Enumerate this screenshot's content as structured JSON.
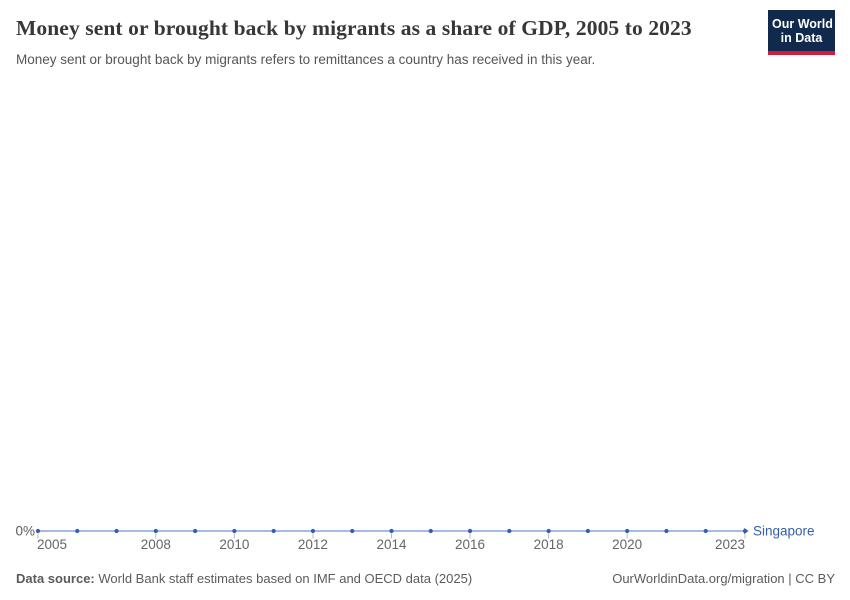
{
  "header": {
    "title": "Money sent or brought back by migrants as a share of GDP, 2005 to 2023",
    "subtitle": "Money sent or brought back by migrants refers to remittances a country has received in this year.",
    "logo": {
      "line1": "Our World",
      "line2": "in Data"
    }
  },
  "chart_data": {
    "type": "line",
    "title": "Money sent or brought back by migrants as a share of GDP, 2005 to 2023",
    "x": [
      2005,
      2006,
      2007,
      2008,
      2009,
      2010,
      2011,
      2012,
      2013,
      2014,
      2015,
      2016,
      2017,
      2018,
      2019,
      2020,
      2021,
      2022,
      2023
    ],
    "series": [
      {
        "name": "Singapore",
        "values": [
          0,
          0,
          0,
          0,
          0,
          0,
          0,
          0,
          0,
          0,
          0,
          0,
          0,
          0,
          0,
          0,
          0,
          0,
          0
        ],
        "color": "#3360a9",
        "line_color": "#a4bce3"
      }
    ],
    "x_ticks": [
      2005,
      2008,
      2010,
      2012,
      2014,
      2016,
      2018,
      2020,
      2023
    ],
    "xlim": [
      2005,
      2023
    ],
    "ylim": [
      0,
      0
    ],
    "y_tick_label": "0%",
    "xlabel": "",
    "ylabel": "",
    "grid": false,
    "legend_position": "end-of-line",
    "tick_label_color": "#666666",
    "axis_label_color": "#5b5b5b",
    "tick_mark_color": "#bbbbbb"
  },
  "footer": {
    "datasource_label": "Data source:",
    "datasource_text": " World Bank staff estimates based on IMF and OECD data (2025)",
    "attribution": "OurWorldinData.org/migration | CC BY"
  },
  "colors": {
    "title": "#383636",
    "subtitle": "#555555",
    "logo_bg": "#12294e",
    "logo_bar": "#cf1b41",
    "series_blue": "#3360a9"
  }
}
